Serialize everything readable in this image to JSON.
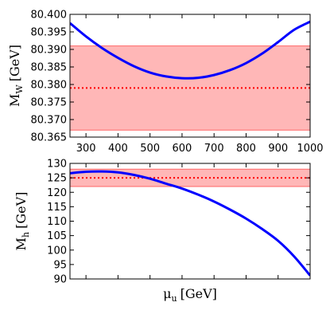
{
  "colors": {
    "curve": "#0000ff",
    "band_fill": "#ff9999",
    "band_edge": "#ff6666",
    "reference": "#ff0000",
    "axes": "#000000"
  },
  "chart_data": [
    {
      "type": "line",
      "panel": "top",
      "ylabel": "M",
      "ylabel_sub": "W",
      "ylabel_unit": "[GeV]",
      "xlim": [
        250,
        1000
      ],
      "ylim": [
        80.365,
        80.4
      ],
      "x_ticks": [
        300,
        400,
        500,
        600,
        700,
        800,
        900,
        1000
      ],
      "x_tick_labels": [
        "300",
        "400",
        "500",
        "600",
        "700",
        "800",
        "900",
        "1000"
      ],
      "y_ticks": [
        80.365,
        80.37,
        80.375,
        80.38,
        80.385,
        80.39,
        80.395,
        80.4
      ],
      "y_tick_labels": [
        "80.365",
        "80.370",
        "80.375",
        "80.380",
        "80.385",
        "80.390",
        "80.395",
        "80.400"
      ],
      "series": [
        {
          "x": [
            250,
            300,
            350,
            400,
            450,
            500,
            550,
            600,
            650,
            700,
            750,
            800,
            850,
            900,
            950,
            1000
          ],
          "y": [
            80.3975,
            80.3937,
            80.3904,
            80.3876,
            80.3852,
            80.3834,
            80.3823,
            80.3818,
            80.3819,
            80.3827,
            80.3841,
            80.3861,
            80.3888,
            80.3921,
            80.3956,
            80.3979
          ]
        }
      ],
      "band": {
        "y_low": 80.367,
        "y_high": 80.391
      },
      "reference_line": {
        "y": 80.379,
        "style": "dotted"
      }
    },
    {
      "type": "line",
      "panel": "bottom",
      "ylabel": "M",
      "ylabel_sub": "h",
      "ylabel_unit": "[GeV]",
      "xlabel": "μ",
      "xlabel_sub": "u",
      "xlabel_unit": "[GeV]",
      "xlim": [
        250,
        1000
      ],
      "ylim": [
        90,
        130
      ],
      "x_ticks": [
        300,
        400,
        500,
        600,
        700,
        800,
        900,
        1000
      ],
      "y_ticks": [
        90,
        95,
        100,
        105,
        110,
        115,
        120,
        125,
        130
      ],
      "y_tick_labels": [
        "90",
        "95",
        "100",
        "105",
        "110",
        "115",
        "120",
        "125",
        "130"
      ],
      "series": [
        {
          "x": [
            250,
            300,
            350,
            400,
            450,
            500,
            550,
            600,
            650,
            700,
            750,
            800,
            850,
            900,
            950,
            1000
          ],
          "y": [
            126.6,
            127.1,
            127.2,
            126.9,
            126.0,
            124.7,
            123.0,
            121.3,
            119.2,
            116.8,
            114.0,
            110.9,
            107.3,
            103.2,
            97.8,
            91.2
          ]
        }
      ],
      "band": {
        "y_low": 122,
        "y_high": 128
      },
      "reference_line": {
        "y": 125,
        "style": "dotted"
      }
    }
  ]
}
